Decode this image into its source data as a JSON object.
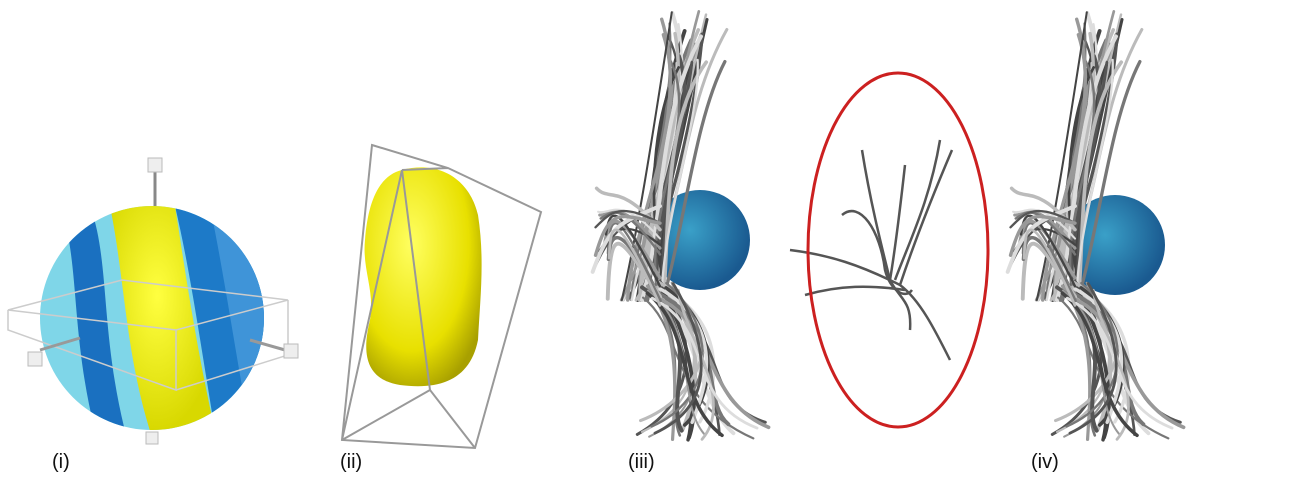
{
  "panels": [
    {
      "label": "(i)"
    },
    {
      "label": "(ii)"
    },
    {
      "label": "(iii)"
    },
    {
      "label": "(iv)"
    }
  ]
}
